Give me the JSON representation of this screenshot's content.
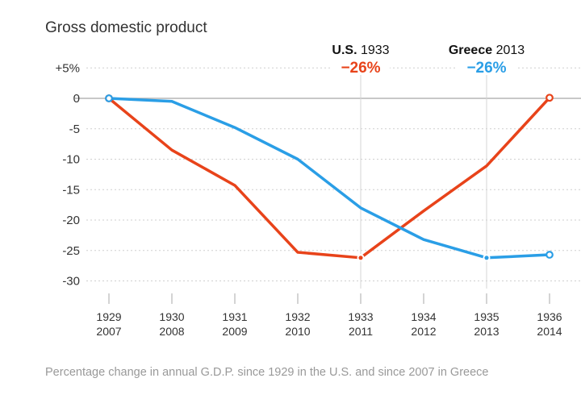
{
  "chart_data": {
    "type": "line",
    "title": "Gross domestic product",
    "note": "Percentage change in annual G.D.P. since 1929 in the U.S. and since 2007 in Greece",
    "xlabel": "",
    "ylabel": "",
    "ylim": [
      -30,
      5
    ],
    "yticks": [
      5,
      0,
      -5,
      -10,
      -15,
      -20,
      -25,
      -30
    ],
    "ytick_labels": [
      "+5%",
      "0",
      "-5",
      "-10",
      "-15",
      "-20",
      "-25",
      "-30"
    ],
    "grid": true,
    "x_labels_top": [
      "1929",
      "1930",
      "1931",
      "1932",
      "1933",
      "1934",
      "1935",
      "1936"
    ],
    "x_labels_bottom": [
      "2007",
      "2008",
      "2009",
      "2010",
      "2011",
      "2012",
      "2013",
      "2014"
    ],
    "series": [
      {
        "name": "U.S.",
        "color": "#e8431a",
        "values": [
          0,
          -8.5,
          -14.3,
          -25.3,
          -26.2,
          -18.5,
          -11.1,
          0.1
        ]
      },
      {
        "name": "Greece",
        "color": "#2a9ee6",
        "values": [
          0,
          -0.5,
          -4.8,
          -10.0,
          -18.0,
          -23.2,
          -26.2,
          -25.7
        ]
      }
    ],
    "annotations": [
      {
        "series": "U.S.",
        "bold": "U.S.",
        "year": "1933",
        "value_label": "−26%",
        "index": 4
      },
      {
        "series": "Greece",
        "bold": "Greece",
        "year": "2013",
        "value_label": "−26%",
        "index": 6
      }
    ]
  }
}
